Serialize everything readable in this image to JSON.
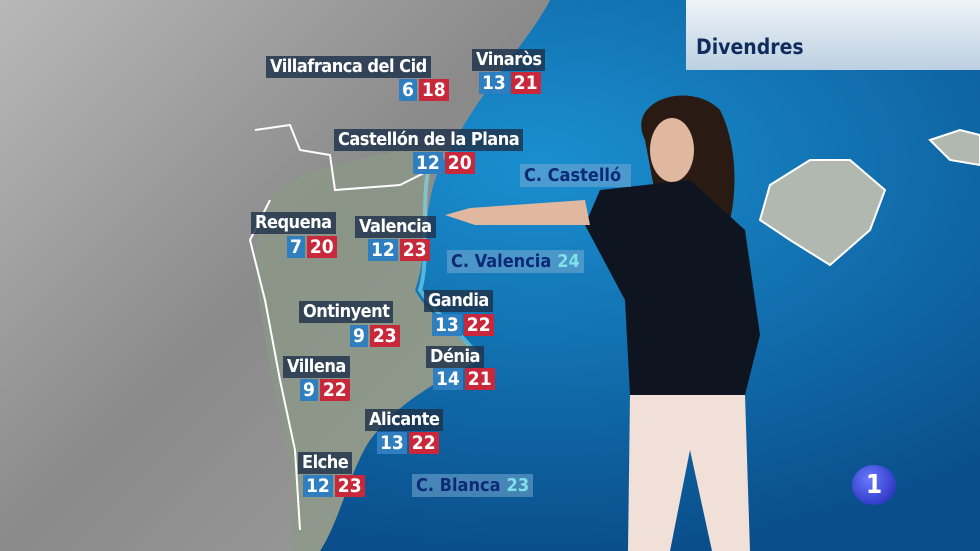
{
  "header": {
    "day": "Divendres"
  },
  "channel_logo": "1",
  "colors": {
    "min": "#2f7fc0",
    "max": "#c9283b",
    "sea": "#0a5a9a",
    "label_bg": "#1e324b"
  },
  "cities": [
    {
      "name": "Villafranca del Cid",
      "min": "6",
      "max": "18"
    },
    {
      "name": "Vinaròs",
      "min": "13",
      "max": "21"
    },
    {
      "name": "Castellón de la Plana",
      "min": "12",
      "max": "20"
    },
    {
      "name": "Requena",
      "min": "7",
      "max": "20"
    },
    {
      "name": "Valencia",
      "min": "12",
      "max": "23"
    },
    {
      "name": "Ontinyent",
      "min": "9",
      "max": "23"
    },
    {
      "name": "Gandia",
      "min": "13",
      "max": "22"
    },
    {
      "name": "Villena",
      "min": "9",
      "max": "22"
    },
    {
      "name": "Dénia",
      "min": "14",
      "max": "21"
    },
    {
      "name": "Alicante",
      "min": "13",
      "max": "22"
    },
    {
      "name": "Elche",
      "min": "12",
      "max": "23"
    }
  ],
  "sea": [
    {
      "name": "C. Castelló",
      "temp": ""
    },
    {
      "name": "C. Valencia",
      "temp": "24"
    },
    {
      "name": "C. Blanca",
      "temp": "23"
    }
  ]
}
